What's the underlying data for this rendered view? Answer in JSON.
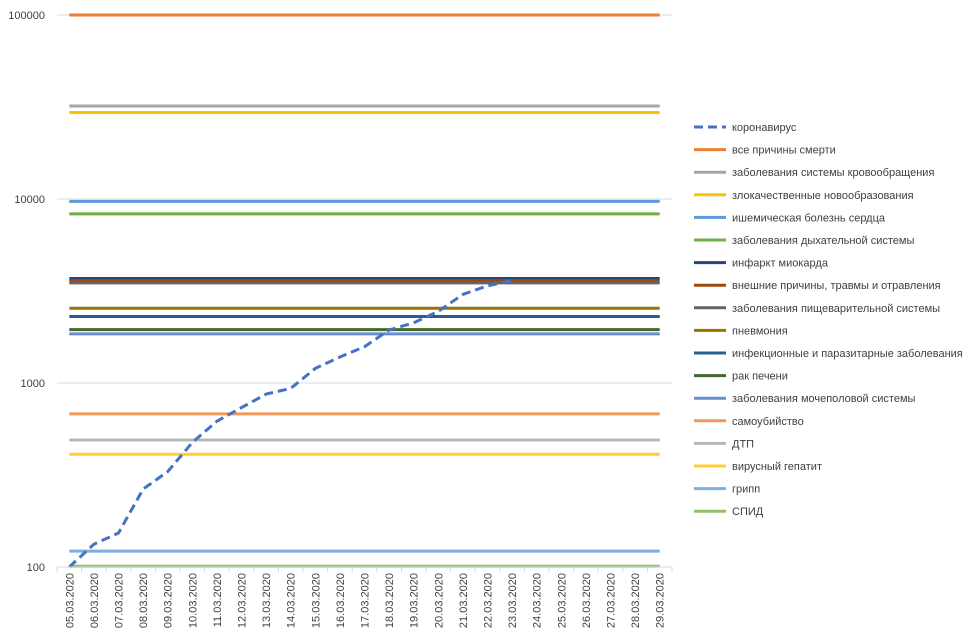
{
  "chart_data": {
    "type": "line",
    "y_scale": "log",
    "ylim": [
      100,
      100000
    ],
    "y_ticks": [
      "100",
      "1000",
      "10000",
      "100000"
    ],
    "grid": true,
    "legend_position": "right",
    "categories": [
      "05.03.2020",
      "06.03.2020",
      "07.03.2020",
      "08.03.2020",
      "09.03.2020",
      "10.03.2020",
      "11.03.2020",
      "12.03.2020",
      "13.03.2020",
      "14.03.2020",
      "15.03.2020",
      "16.03.2020",
      "17.03.2020",
      "18.03.2020",
      "19.03.2020",
      "20.03.2020",
      "21.03.2020",
      "22.03.2020",
      "23.03.2020",
      "24.03.2020",
      "25.03.2020",
      "26.03.2020",
      "27.03.2020",
      "28.03.2020",
      "29.03.2020"
    ],
    "series": [
      {
        "name": "коронавирус",
        "color": "#4472C4",
        "dashed": true,
        "values": [
          100,
          133,
          153,
          265,
          330,
          475,
          620,
          735,
          870,
          935,
          1200,
          1385,
          1575,
          1940,
          2125,
          2450,
          3030,
          3375,
          3600,
          null,
          null,
          null,
          null,
          null,
          null
        ]
      },
      {
        "name": "все причины смерти",
        "color": "#ED7D31",
        "constant": 100000
      },
      {
        "name": "заболевания системы кровообращения",
        "color": "#A5A5A5",
        "constant": 32000
      },
      {
        "name": "злокачественные новообразования",
        "color": "#FFC000",
        "constant": 29500
      },
      {
        "name": "ишемическая болезнь сердца",
        "color": "#5B9BD5",
        "constant": 9700
      },
      {
        "name": "заболевания дыхательной системы",
        "color": "#70AD47",
        "constant": 8300
      },
      {
        "name": "инфаркт миокарда",
        "color": "#264478",
        "constant": 3700
      },
      {
        "name": "внешние причины, травмы и отравления",
        "color": "#9E480E",
        "constant": 3600
      },
      {
        "name": "заболевания пищеварительной системы",
        "color": "#636363",
        "constant": 3500
      },
      {
        "name": "пневмония",
        "color": "#997300",
        "constant": 2550
      },
      {
        "name": "инфекционные и паразитарные заболевания",
        "color": "#255E91",
        "constant": 2300
      },
      {
        "name": "рак печени",
        "color": "#43682B",
        "constant": 1950
      },
      {
        "name": "заболевания мочеполовой системы",
        "color": "#698ED0",
        "constant": 1850
      },
      {
        "name": "самоубийство",
        "color": "#F1975A",
        "constant": 680
      },
      {
        "name": "ДТП",
        "color": "#B7B7B7",
        "constant": 490
      },
      {
        "name": "вирусный гепатит",
        "color": "#FFCD33",
        "constant": 410
      },
      {
        "name": "грипп",
        "color": "#7CAFDD",
        "constant": 122
      },
      {
        "name": "СПИД",
        "color": "#8CC168",
        "constant": 101
      }
    ]
  }
}
